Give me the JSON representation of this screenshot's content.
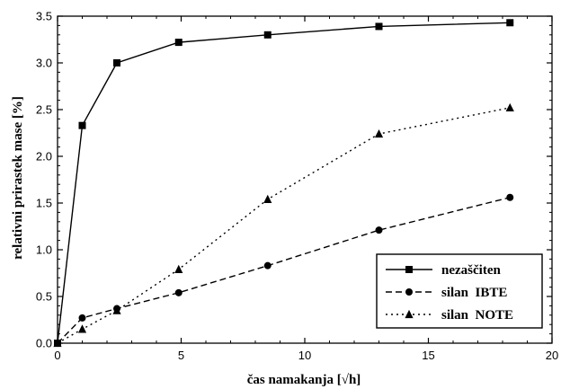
{
  "chart_data": {
    "type": "line",
    "xlabel": "čas namakanja [√h]",
    "ylabel": "relativni prirastek mase [%]",
    "xlim": [
      0,
      20
    ],
    "ylim": [
      0,
      3.5
    ],
    "x_ticks": [
      "0",
      "5",
      "10",
      "15",
      "20"
    ],
    "y_ticks": [
      "0.0",
      "0.5",
      "1.0",
      "1.5",
      "2.0",
      "2.5",
      "3.0",
      "3.5"
    ],
    "grid": false,
    "legend_position": "bottom-right",
    "series": [
      {
        "name": "nezaščiten",
        "marker": "square",
        "dash": "solid",
        "x": [
          0,
          1,
          2.4,
          4.9,
          8.5,
          13,
          18.3
        ],
        "y": [
          0,
          2.33,
          3.0,
          3.22,
          3.3,
          3.39,
          3.43
        ]
      },
      {
        "name": "silan  IBTE",
        "marker": "circle",
        "dash": "dashed",
        "x": [
          0,
          1,
          2.4,
          4.9,
          8.5,
          13,
          18.3
        ],
        "y": [
          0,
          0.27,
          0.37,
          0.54,
          0.83,
          1.21,
          1.56
        ]
      },
      {
        "name": "silan  NOTE",
        "marker": "triangle",
        "dash": "dotted",
        "x": [
          0,
          1,
          2.4,
          4.9,
          8.5,
          13,
          18.3
        ],
        "y": [
          0,
          0.15,
          0.35,
          0.79,
          1.54,
          2.24,
          2.52
        ]
      }
    ]
  }
}
